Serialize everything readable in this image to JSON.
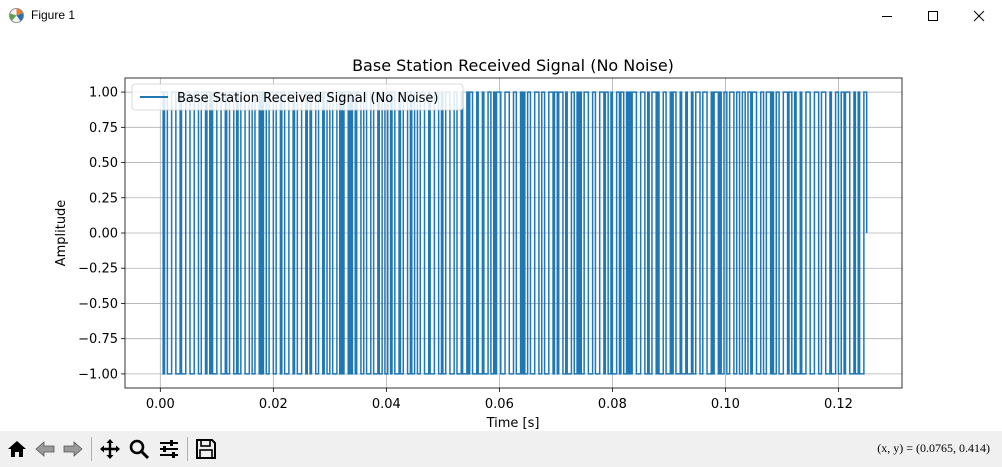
{
  "window": {
    "title": "Figure 1"
  },
  "toolbar": {
    "icons": [
      "home-icon",
      "back-arrow-icon",
      "forward-arrow-icon",
      "pan-icon",
      "zoom-icon",
      "configure-subplots-icon",
      "save-icon"
    ],
    "coords": "(x, y) = (0.0765, 0.414)"
  },
  "colors": {
    "line": "#1f77b4",
    "grid": "#b0b0b0",
    "toolbar_bg": "#f0f0f0"
  },
  "chart_data": {
    "type": "line",
    "title": "Base Station Received Signal (No Noise)",
    "xlabel": "Time [s]",
    "ylabel": "Amplitude",
    "xlim": [
      -0.00625,
      0.13125
    ],
    "ylim": [
      -1.1,
      1.1
    ],
    "grid": true,
    "legend_position": "top-left",
    "x_ticks": [
      0.0,
      0.02,
      0.04,
      0.06,
      0.08,
      0.1,
      0.12
    ],
    "x_tick_labels": [
      "0.00",
      "0.02",
      "0.04",
      "0.06",
      "0.08",
      "0.10",
      "0.12"
    ],
    "y_ticks": [
      -1.0,
      -0.75,
      -0.5,
      -0.25,
      0.0,
      0.25,
      0.5,
      0.75,
      1.0
    ],
    "y_tick_labels": [
      "−1.00",
      "−0.75",
      "−0.50",
      "−0.25",
      "0.00",
      "0.25",
      "0.50",
      "0.75",
      "1.00"
    ],
    "series": [
      {
        "name": "Base Station Received Signal (No Noise)",
        "description": "Square-wave-like signal oscillating between -1 and 1 with variable switching intervals",
        "x_range": [
          0.0,
          0.125
        ],
        "levels": [
          -1.0,
          1.0
        ],
        "end_value": 0.0
      }
    ]
  }
}
